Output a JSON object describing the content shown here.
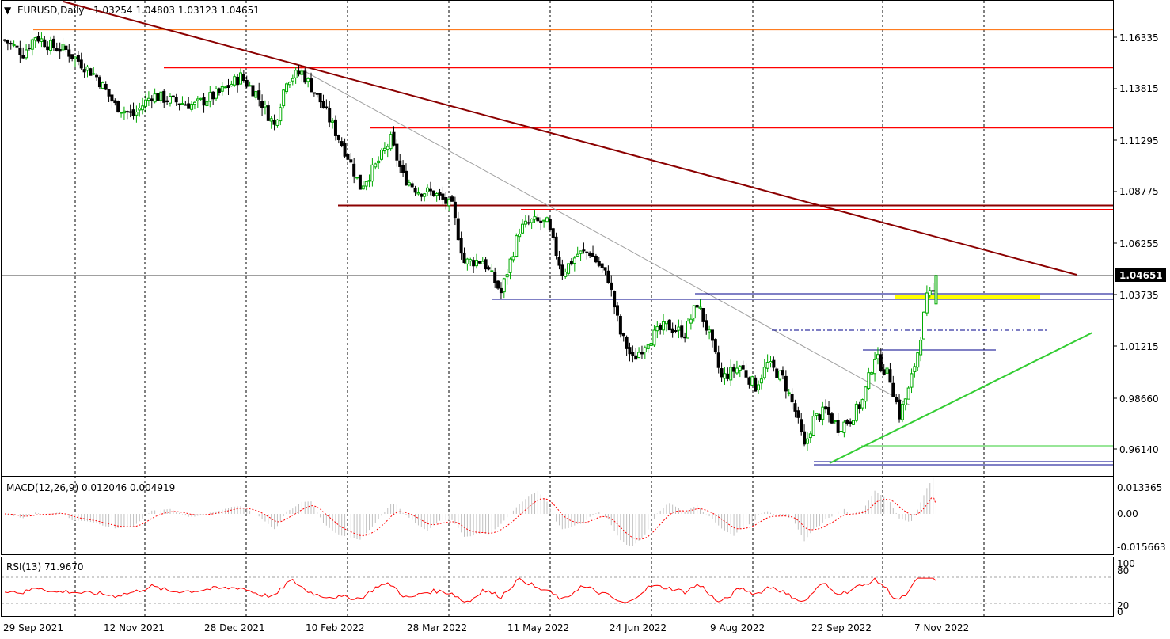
{
  "header": {
    "symbol": "EURUSD,Daily",
    "ohlc": "1.03254 1.04803 1.03123 1.04651"
  },
  "macd": {
    "label": "MACD(12,26,9) 0.012046 0.004919",
    "levels": [
      "0.013365",
      "0.00",
      "-0.015663"
    ]
  },
  "rsi": {
    "label": "RSI(13) 71.9670",
    "levels": [
      "100",
      "80",
      "20",
      "0"
    ]
  },
  "price_axis": [
    "1.16335",
    "1.13815",
    "1.11295",
    "1.08775",
    "1.06255",
    "1.04651",
    "1.03735",
    "1.01215",
    "0.98660",
    "0.96140"
  ],
  "current_price": "1.04651",
  "date_axis": [
    "29 Sep 2021",
    "12 Nov 2021",
    "28 Dec 2021",
    "10 Feb 2022",
    "28 Mar 2022",
    "11 May 2022",
    "24 Jun 2022",
    "9 Aug 2022",
    "22 Sep 2022",
    "7 Nov 2022"
  ],
  "colors": {
    "bull": "#00aa00",
    "bear": "#000000",
    "resistance": "#ff0000",
    "trendline": "#8b0000",
    "support": "#00008b",
    "uptrend": "#32cd32",
    "highlight": "#ffff00",
    "macd_signal": "#ff0000",
    "rsi_line": "#ff0000",
    "macd_hist": "#c0c0c0"
  },
  "chart_data": {
    "type": "candlestick",
    "symbol": "EURUSD",
    "timeframe": "Daily",
    "last_close": 1.04651,
    "anchors": [
      [
        0,
        1.162
      ],
      [
        6,
        1.1555
      ],
      [
        10,
        1.164
      ],
      [
        15,
        1.159
      ],
      [
        20,
        1.157
      ],
      [
        30,
        1.144
      ],
      [
        36,
        1.13
      ],
      [
        42,
        1.125
      ],
      [
        48,
        1.135
      ],
      [
        55,
        1.132
      ],
      [
        62,
        1.13
      ],
      [
        70,
        1.136
      ],
      [
        77,
        1.144
      ],
      [
        82,
        1.136
      ],
      [
        88,
        1.12
      ],
      [
        92,
        1.143
      ],
      [
        97,
        1.146
      ],
      [
        103,
        1.132
      ],
      [
        108,
        1.117
      ],
      [
        112,
        1.105
      ],
      [
        116,
        1.09
      ],
      [
        121,
        1.1
      ],
      [
        126,
        1.113
      ],
      [
        130,
        1.095
      ],
      [
        135,
        1.088
      ],
      [
        140,
        1.087
      ],
      [
        146,
        1.08
      ],
      [
        150,
        1.053
      ],
      [
        156,
        1.054
      ],
      [
        162,
        1.038
      ],
      [
        168,
        1.069
      ],
      [
        172,
        1.073
      ],
      [
        177,
        1.072
      ],
      [
        182,
        1.048
      ],
      [
        187,
        1.057
      ],
      [
        191,
        1.058
      ],
      [
        197,
        1.045
      ],
      [
        201,
        1.018
      ],
      [
        205,
        1.005
      ],
      [
        210,
        1.015
      ],
      [
        216,
        1.022
      ],
      [
        222,
        1.018
      ],
      [
        226,
        1.033
      ],
      [
        230,
        1.017
      ],
      [
        234,
        0.996
      ],
      [
        240,
        1.002
      ],
      [
        245,
        0.992
      ],
      [
        249,
        1.003
      ],
      [
        254,
        0.996
      ],
      [
        258,
        0.98
      ],
      [
        261,
        0.962
      ],
      [
        264,
        0.976
      ],
      [
        268,
        0.98
      ],
      [
        272,
        0.972
      ],
      [
        276,
        0.976
      ],
      [
        280,
        0.985
      ],
      [
        284,
        1.007
      ],
      [
        289,
        0.996
      ],
      [
        292,
        0.978
      ],
      [
        295,
        0.99
      ],
      [
        298,
        1.009
      ],
      [
        301,
        1.035
      ],
      [
        303,
        1.038
      ],
      [
        304,
        1.0465
      ]
    ],
    "levels": {
      "resistance": [
        1.167,
        1.1485,
        1.119,
        1.08,
        1.079
      ],
      "support": [
        1.0365,
        1.0378,
        1.0115,
        0.9535,
        0.9545
      ],
      "dashed_support": 1.025,
      "uptrend_ref": 0.963,
      "highlight_zone": 1.0375
    }
  }
}
